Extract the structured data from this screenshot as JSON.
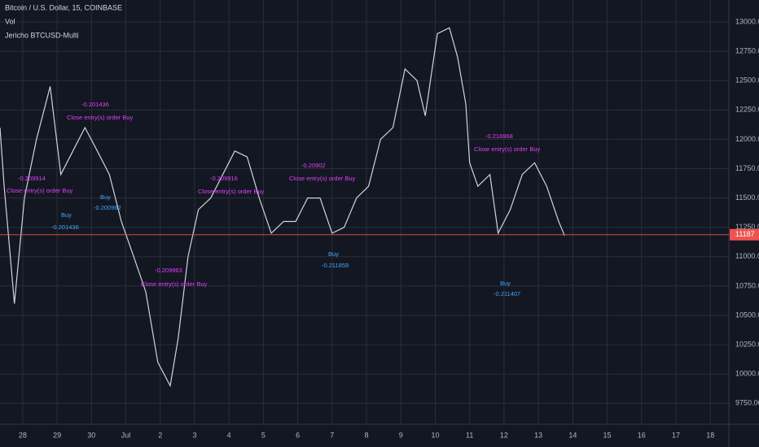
{
  "chart_data": {
    "type": "line",
    "title": "Bitcoin / U.S. Dollar, 15, COINBASE",
    "indicators": [
      "Vol",
      "Jericho BTCUSD-Multi"
    ],
    "x": [
      -0.66,
      -0.54,
      -0.24,
      0.05,
      0.4,
      0.8,
      1.11,
      1.46,
      1.81,
      2.17,
      2.52,
      2.87,
      3.23,
      3.58,
      3.93,
      4.29,
      4.52,
      4.81,
      5.11,
      5.47,
      5.82,
      6.17,
      6.53,
      6.88,
      7.23,
      7.59,
      7.94,
      8.29,
      8.65,
      9.0,
      9.35,
      9.71,
      10.06,
      10.41,
      10.77,
      11.12,
      11.47,
      11.71,
      12.06,
      12.41,
      12.65,
      12.89,
      13.0,
      13.24,
      13.59,
      13.83,
      14.18,
      14.53,
      14.89,
      15.24,
      15.59,
      15.76
    ],
    "series": [
      {
        "name": "BTCUSD",
        "color": "#d1d4dc",
        "values": [
          12100,
          11600,
          10600,
          11500,
          12000,
          12450,
          11700,
          11900,
          12100,
          11900,
          11700,
          11300,
          11000,
          10700,
          10100,
          9900,
          10300,
          11000,
          11400,
          11500,
          11700,
          11900,
          11850,
          11500,
          11200,
          11300,
          11300,
          11500,
          11500,
          11200,
          11250,
          11500,
          11600,
          12000,
          12100,
          12600,
          12500,
          12200,
          12900,
          12950,
          12700,
          12300,
          11800,
          11600,
          11700,
          11200,
          11400,
          11700,
          11800,
          11600,
          11300,
          11180
        ]
      }
    ],
    "xlim": [
      -0.66,
      20.54
    ],
    "xticks": [
      {
        "value": 0,
        "label": "28"
      },
      {
        "value": 1,
        "label": "29"
      },
      {
        "value": 2,
        "label": "30"
      },
      {
        "value": 3,
        "label": "Jul"
      },
      {
        "value": 4,
        "label": "2"
      },
      {
        "value": 5,
        "label": "3"
      },
      {
        "value": 6,
        "label": "4"
      },
      {
        "value": 7,
        "label": "5"
      },
      {
        "value": 8,
        "label": "6"
      },
      {
        "value": 9,
        "label": "7"
      },
      {
        "value": 10,
        "label": "8"
      },
      {
        "value": 11,
        "label": "9"
      },
      {
        "value": 12,
        "label": "10"
      },
      {
        "value": 13,
        "label": "11"
      },
      {
        "value": 14,
        "label": "12"
      },
      {
        "value": 15,
        "label": "13"
      },
      {
        "value": 16,
        "label": "14"
      },
      {
        "value": 17,
        "label": "15"
      },
      {
        "value": 18,
        "label": "16"
      },
      {
        "value": 19,
        "label": "17"
      },
      {
        "value": 20,
        "label": "18"
      }
    ],
    "ylim": [
      9572,
      13187
    ],
    "yticks": [
      {
        "value": 9750,
        "label": "9750.00"
      },
      {
        "value": 10000,
        "label": "10000.00"
      },
      {
        "value": 10250,
        "label": "10250.00"
      },
      {
        "value": 10500,
        "label": "10500.00"
      },
      {
        "value": 10750,
        "label": "10750.00"
      },
      {
        "value": 11000,
        "label": "11000.00"
      },
      {
        "value": 11250,
        "label": "11250.00"
      },
      {
        "value": 11500,
        "label": "11500.00"
      },
      {
        "value": 11750,
        "label": "11750.00"
      },
      {
        "value": 12000,
        "label": "12000.00"
      },
      {
        "value": 12250,
        "label": "12250.00"
      },
      {
        "value": 12500,
        "label": "12500.00"
      },
      {
        "value": 12750,
        "label": "12750.00"
      },
      {
        "value": 13000,
        "label": "13000.00"
      }
    ],
    "grid": true,
    "last_price": {
      "value": 11187,
      "label": "11187",
      "color": "#ef5350"
    },
    "annotations": [
      "-0.209914",
      "Close entry(s) order Buy",
      "-0.201436",
      "Close entry(s) order Buy",
      "Buy",
      "-0.200962",
      "-0.209916",
      "Close entry(s) order Buy",
      "-0.20902",
      "Close entry(s) order Buy",
      "Buy",
      "-0.211859",
      "-0.216968",
      "Close entry(s) order Buy",
      "Buy",
      "-0.211407",
      "Buy",
      "-0.201436",
      "-0.209963",
      "Close entry(s) order Buy"
    ]
  }
}
